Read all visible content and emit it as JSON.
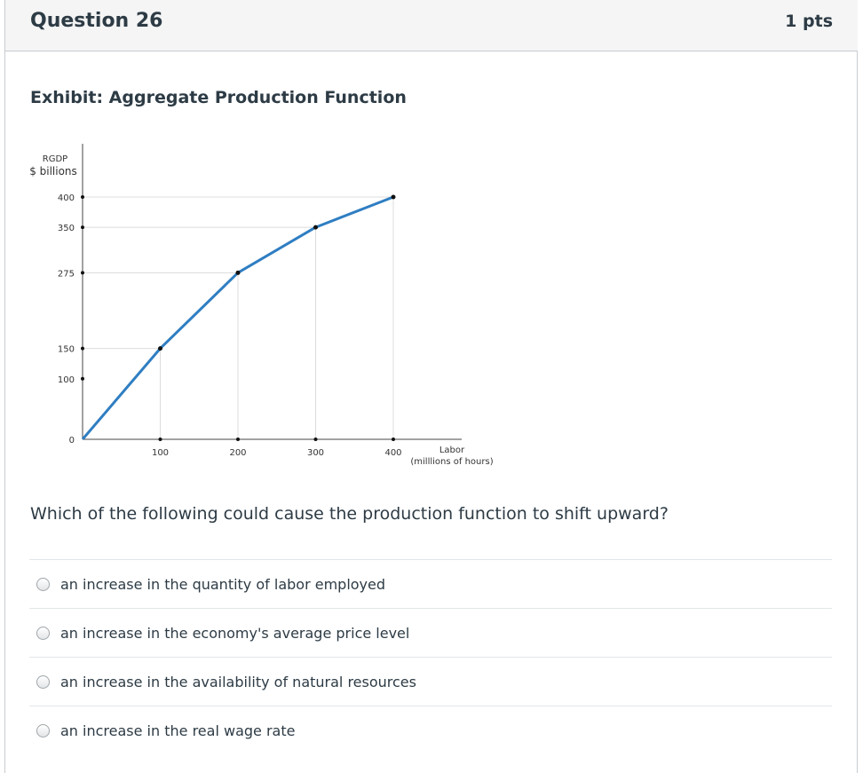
{
  "question": {
    "title": "Question 26",
    "points": "1 pts"
  },
  "exhibit_title": "Exhibit: Aggregate Production Function",
  "chart_data": {
    "type": "line",
    "title": "",
    "ylabel_line1": "RGDP",
    "ylabel_line2": "$ billions",
    "xlabel_line1": "Labor",
    "xlabel_line2": "(milllions of hours)",
    "x_ticks": [
      "100",
      "200",
      "300",
      "400"
    ],
    "y_ticks": [
      "400",
      "350",
      "275",
      "150",
      "100",
      "0"
    ],
    "points": [
      {
        "x": 0,
        "y": 0
      },
      {
        "x": 100,
        "y": 150
      },
      {
        "x": 200,
        "y": 275
      },
      {
        "x": 300,
        "y": 350
      },
      {
        "x": 400,
        "y": 400
      }
    ],
    "xlim": [
      0,
      400
    ],
    "ylim": [
      0,
      400
    ],
    "line_color": "#2f7ec2"
  },
  "prompt": "Which of the following could cause the production function to shift upward?",
  "answers": [
    "an increase in the quantity of labor employed",
    "an increase in the economy's average price level",
    "an increase in the availability of natural resources",
    "an increase in the real wage rate"
  ]
}
